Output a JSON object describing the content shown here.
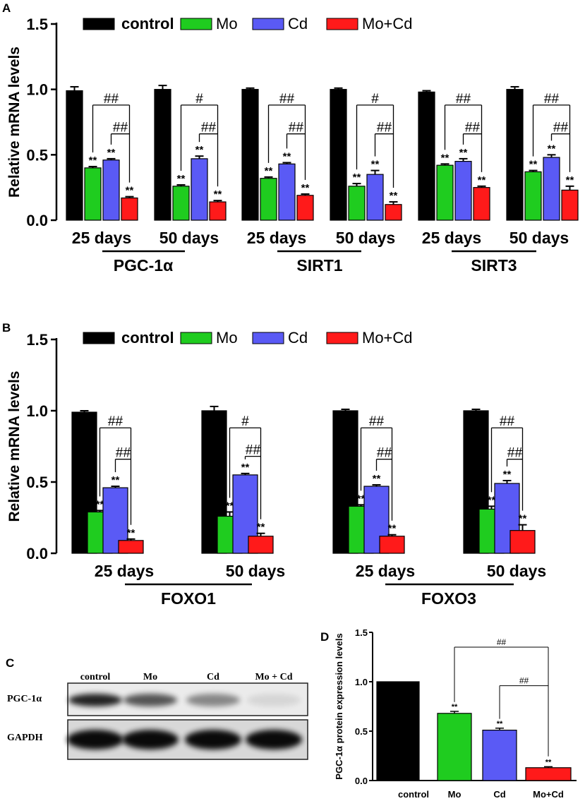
{
  "figure": {
    "colors": {
      "control": "#000000",
      "Mo": "#1fcc1f",
      "Cd": "#5a5af5",
      "Mo+Cd": "#ff1a1a"
    }
  },
  "chart_data": [
    {
      "panel": "A",
      "type": "bar",
      "ylabel": "Relative mRNA levels",
      "ylim": [
        0,
        1.5
      ],
      "yticks": [
        "0.0",
        "0.5",
        "1.0",
        "1.5"
      ],
      "legend": [
        "control",
        "Mo",
        "Cd",
        "Mo+Cd"
      ],
      "series": [
        "control",
        "Mo",
        "Cd",
        "Mo+Cd"
      ],
      "groups": [
        {
          "label": "25 days",
          "values": [
            0.99,
            0.4,
            0.46,
            0.17
          ],
          "errors": [
            0.03,
            0.01,
            0.01,
            0.01
          ],
          "stars": [
            "",
            "**",
            "**",
            "**"
          ],
          "sig": [
            "##",
            "##"
          ]
        },
        {
          "label": "50 days",
          "values": [
            1.0,
            0.26,
            0.47,
            0.14
          ],
          "errors": [
            0.03,
            0.01,
            0.02,
            0.01
          ],
          "stars": [
            "",
            "**",
            "**",
            "**"
          ],
          "sig": [
            "#",
            "##"
          ]
        },
        {
          "label": "25 days",
          "values": [
            1.0,
            0.32,
            0.43,
            0.19
          ],
          "errors": [
            0.01,
            0.01,
            0.01,
            0.01
          ],
          "stars": [
            "",
            "**",
            "**",
            "**"
          ],
          "sig": [
            "##",
            "##"
          ]
        },
        {
          "label": "50 days",
          "values": [
            1.0,
            0.26,
            0.35,
            0.12
          ],
          "errors": [
            0.01,
            0.02,
            0.03,
            0.02
          ],
          "stars": [
            "",
            "**",
            "**",
            "**"
          ],
          "sig": [
            "#",
            "##"
          ]
        },
        {
          "label": "25 days",
          "values": [
            0.98,
            0.42,
            0.45,
            0.25
          ],
          "errors": [
            0.01,
            0.01,
            0.02,
            0.01
          ],
          "stars": [
            "",
            "**",
            "**",
            "**"
          ],
          "sig": [
            "##",
            "##"
          ]
        },
        {
          "label": "50 days",
          "values": [
            1.0,
            0.37,
            0.48,
            0.23
          ],
          "errors": [
            0.02,
            0.01,
            0.02,
            0.03
          ],
          "stars": [
            "",
            "**",
            "**",
            "**"
          ],
          "sig": [
            "##",
            "##"
          ]
        }
      ],
      "gene_labels": [
        "PGC-1α",
        "SIRT1",
        "SIRT3"
      ]
    },
    {
      "panel": "B",
      "type": "bar",
      "ylabel": "Relative mRNA levels",
      "ylim": [
        0,
        1.5
      ],
      "yticks": [
        "0.0",
        "0.5",
        "1.0",
        "1.5"
      ],
      "legend": [
        "control",
        "Mo",
        "Cd",
        "Mo+Cd"
      ],
      "series": [
        "control",
        "Mo",
        "Cd",
        "Mo+Cd"
      ],
      "groups": [
        {
          "label": "25 days",
          "values": [
            0.99,
            0.29,
            0.46,
            0.09
          ],
          "errors": [
            0.01,
            0.01,
            0.01,
            0.01
          ],
          "stars": [
            "",
            "**",
            "**",
            "**"
          ],
          "sig": [
            "##",
            "##"
          ]
        },
        {
          "label": "50 days",
          "values": [
            1.0,
            0.26,
            0.55,
            0.12
          ],
          "errors": [
            0.03,
            0.03,
            0.01,
            0.02
          ],
          "stars": [
            "",
            "**",
            "**",
            "**"
          ],
          "sig": [
            "#",
            "##"
          ]
        },
        {
          "label": "25 days",
          "values": [
            1.0,
            0.33,
            0.47,
            0.12
          ],
          "errors": [
            0.01,
            0.01,
            0.01,
            0.01
          ],
          "stars": [
            "",
            "**",
            "**",
            "**"
          ],
          "sig": [
            "##",
            "##"
          ]
        },
        {
          "label": "50 days",
          "values": [
            1.0,
            0.31,
            0.49,
            0.16
          ],
          "errors": [
            0.01,
            0.02,
            0.02,
            0.04
          ],
          "stars": [
            "",
            "**",
            "**",
            "**"
          ],
          "sig": [
            "##",
            "##"
          ]
        }
      ],
      "gene_labels": [
        "FOXO1",
        "FOXO3"
      ]
    },
    {
      "panel": "C",
      "type": "western-blot",
      "lanes": [
        "control",
        "Mo",
        "Cd",
        "Mo + Cd"
      ],
      "rows": [
        "PGC-1α",
        "GAPDH"
      ],
      "band_intensity": {
        "PGC-1α": [
          1.0,
          0.75,
          0.5,
          0.1
        ],
        "GAPDH": [
          1.0,
          1.0,
          1.0,
          1.0
        ]
      }
    },
    {
      "panel": "D",
      "type": "bar",
      "ylabel": "PGC-1α protein expression levels",
      "ylim": [
        0,
        1.5
      ],
      "yticks": [
        "0.0",
        "0.5",
        "1.0",
        "1.5"
      ],
      "categories": [
        "control",
        "Mo",
        "Cd",
        "Mo+Cd"
      ],
      "values": [
        1.0,
        0.68,
        0.51,
        0.13
      ],
      "errors": [
        0.0,
        0.02,
        0.02,
        0.01
      ],
      "stars": [
        "",
        "**",
        "**",
        "**"
      ],
      "sig": [
        "##",
        "##"
      ]
    }
  ]
}
